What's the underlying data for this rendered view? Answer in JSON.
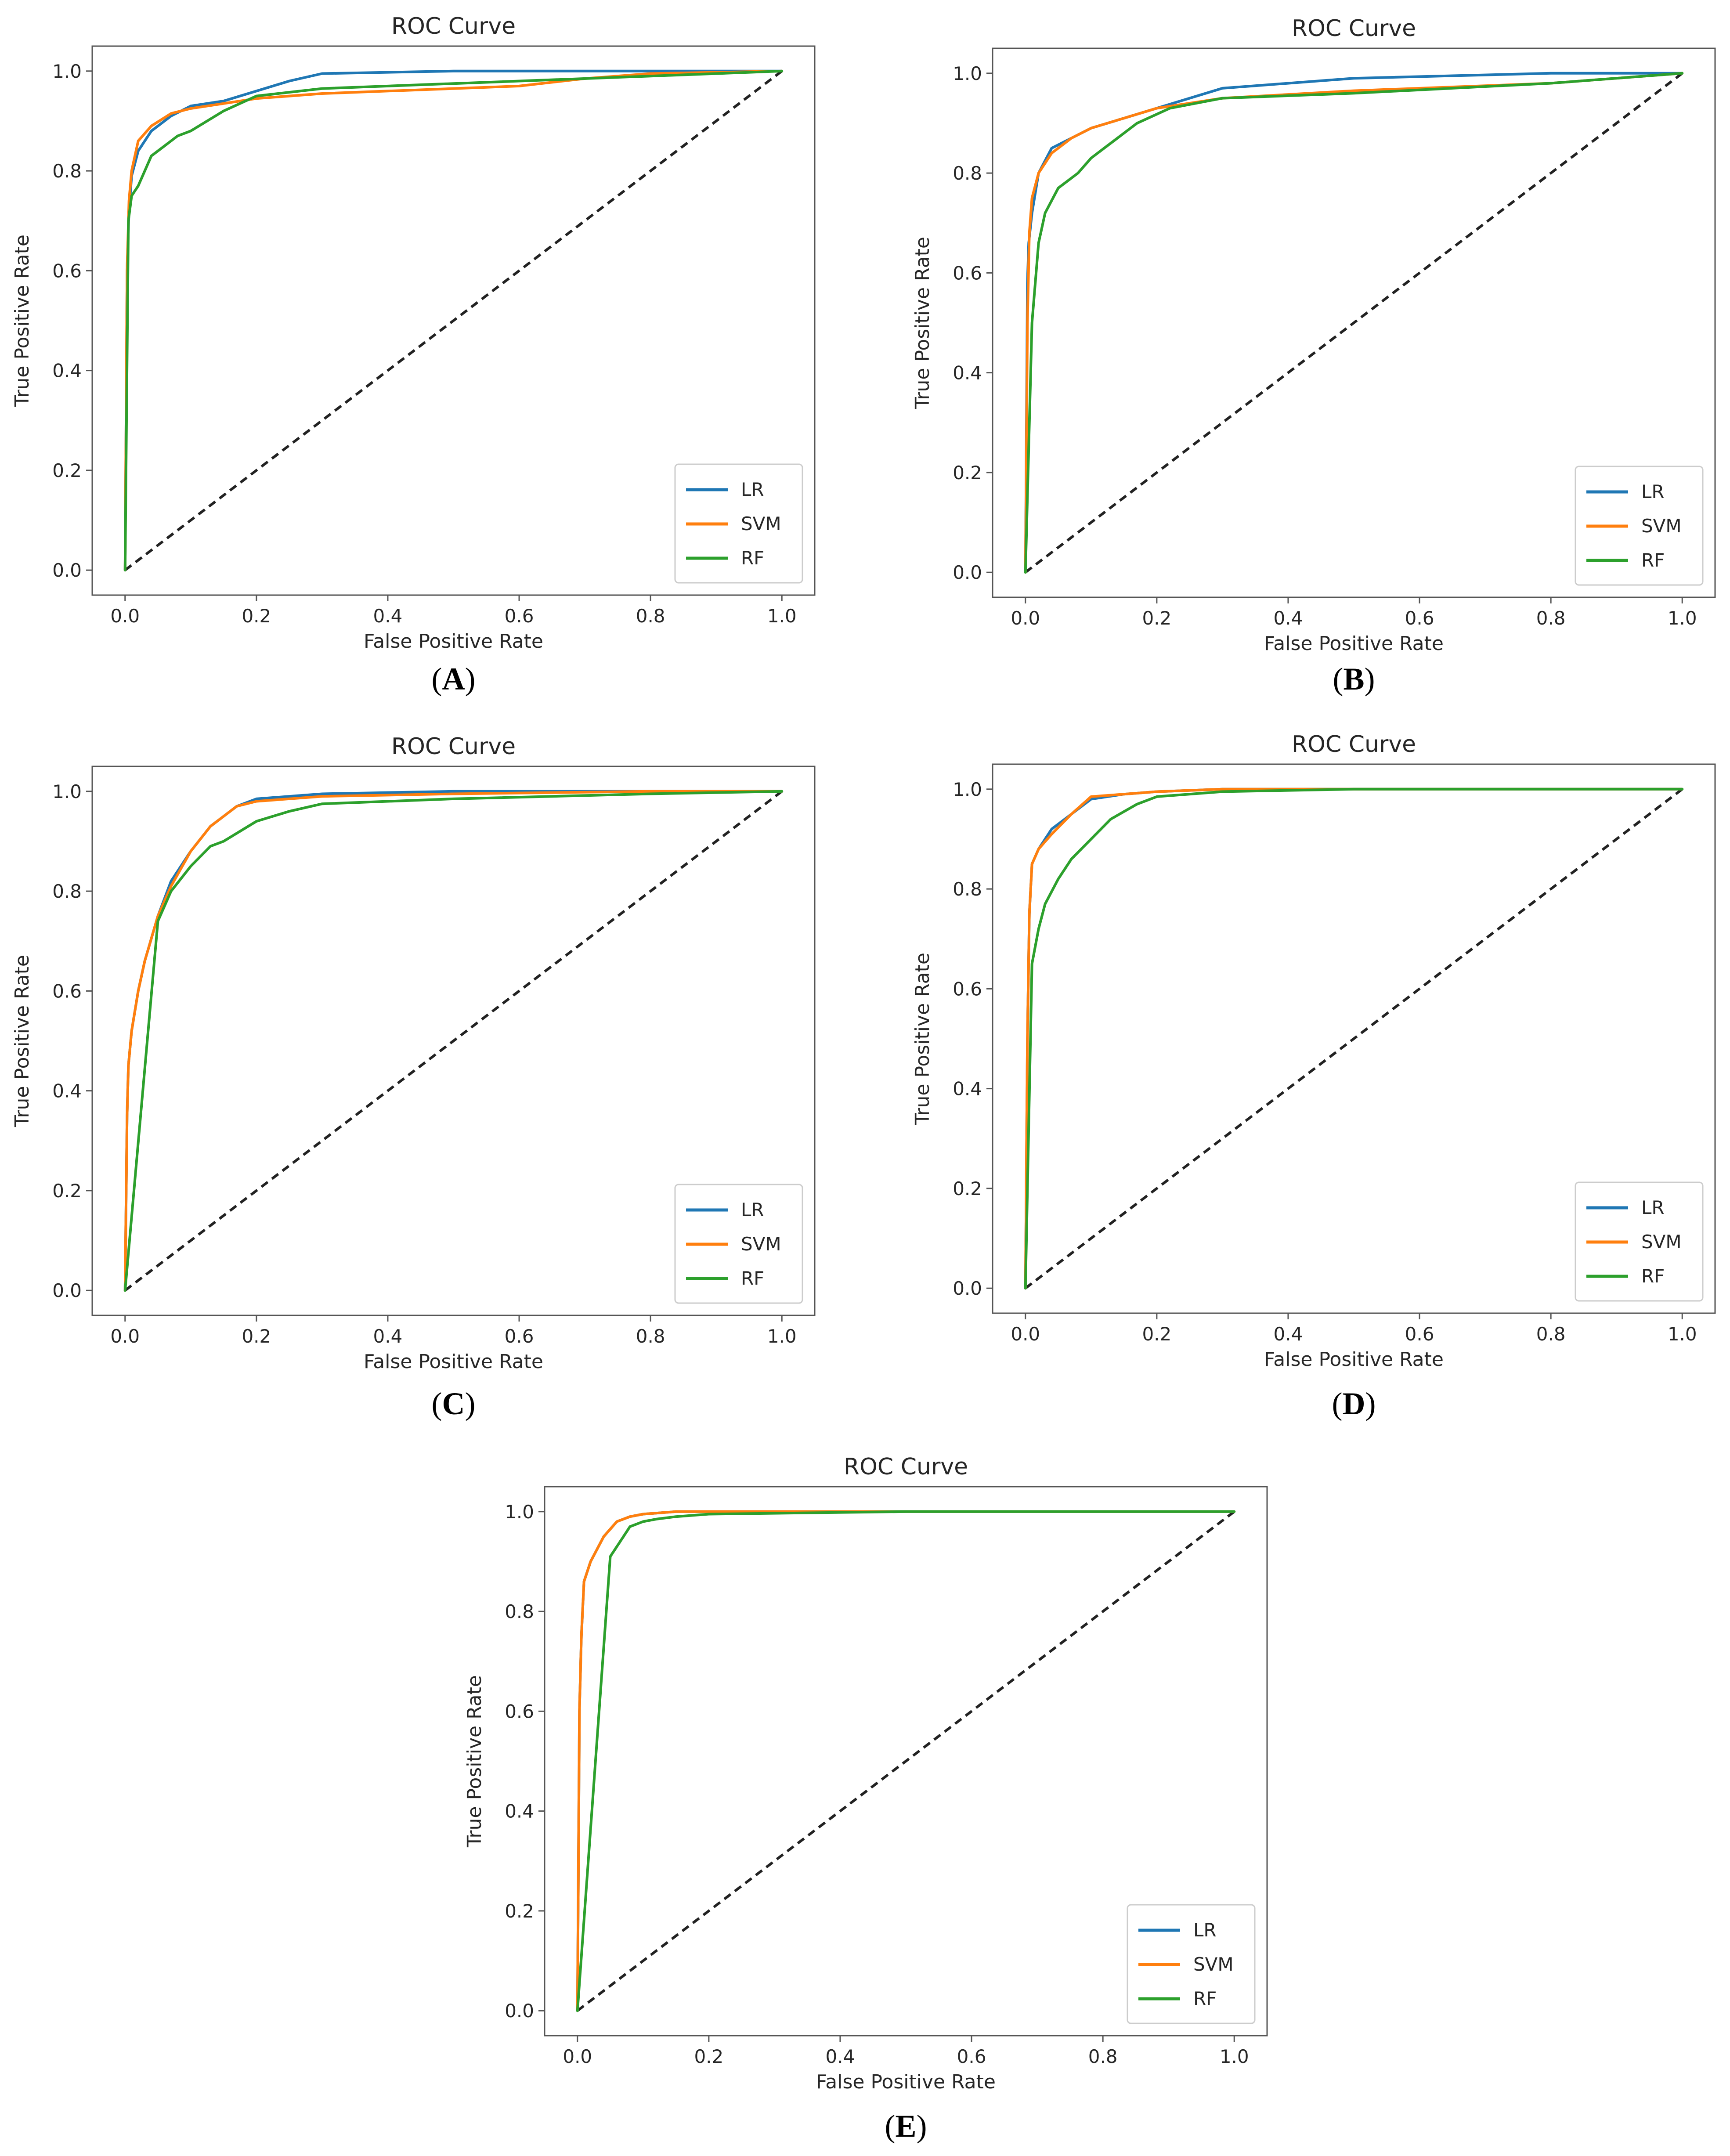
{
  "chart_data": [
    {
      "panel": "A",
      "type": "line",
      "title": "ROC Curve",
      "xlabel": "False Positive Rate",
      "ylabel": "True Positive Rate",
      "xlim": [
        0,
        1
      ],
      "ylim": [
        0,
        1
      ],
      "xticks": [
        "0.0",
        "0.2",
        "0.4",
        "0.6",
        "0.8",
        "1.0"
      ],
      "yticks": [
        "0.0",
        "0.2",
        "0.4",
        "0.6",
        "0.8",
        "1.0"
      ],
      "legend_position": "lower-right",
      "series": [
        {
          "name": "LR",
          "color": "#1f77b4",
          "x": [
            0,
            0.003,
            0.006,
            0.01,
            0.02,
            0.04,
            0.07,
            0.1,
            0.15,
            0.2,
            0.25,
            0.3,
            0.5,
            0.8,
            1.0
          ],
          "y": [
            0,
            0.6,
            0.72,
            0.79,
            0.84,
            0.88,
            0.91,
            0.93,
            0.94,
            0.96,
            0.98,
            0.995,
            1.0,
            1.0,
            1.0
          ]
        },
        {
          "name": "SVM",
          "color": "#ff7f0e",
          "x": [
            0,
            0.003,
            0.006,
            0.01,
            0.02,
            0.04,
            0.07,
            0.1,
            0.15,
            0.2,
            0.3,
            0.5,
            0.6,
            0.7,
            0.8,
            1.0
          ],
          "y": [
            0,
            0.6,
            0.74,
            0.8,
            0.86,
            0.89,
            0.915,
            0.925,
            0.935,
            0.945,
            0.955,
            0.965,
            0.97,
            0.985,
            0.995,
            1.0
          ]
        },
        {
          "name": "RF",
          "color": "#2ca02c",
          "x": [
            0,
            0.005,
            0.01,
            0.02,
            0.04,
            0.06,
            0.08,
            0.1,
            0.15,
            0.2,
            0.3,
            0.5,
            0.8,
            1.0
          ],
          "y": [
            0,
            0.7,
            0.75,
            0.77,
            0.83,
            0.85,
            0.87,
            0.88,
            0.92,
            0.95,
            0.965,
            0.975,
            0.99,
            1.0
          ]
        }
      ]
    },
    {
      "panel": "B",
      "type": "line",
      "title": "ROC Curve",
      "xlabel": "False Positive Rate",
      "ylabel": "True Positive Rate",
      "xlim": [
        0,
        1
      ],
      "ylim": [
        0,
        1
      ],
      "xticks": [
        "0.0",
        "0.2",
        "0.4",
        "0.6",
        "0.8",
        "1.0"
      ],
      "yticks": [
        "0.0",
        "0.2",
        "0.4",
        "0.6",
        "0.8",
        "1.0"
      ],
      "legend_position": "lower-right",
      "series": [
        {
          "name": "LR",
          "color": "#1f77b4",
          "x": [
            0,
            0.003,
            0.005,
            0.01,
            0.02,
            0.04,
            0.07,
            0.1,
            0.15,
            0.2,
            0.25,
            0.3,
            0.5,
            0.8,
            1.0
          ],
          "y": [
            0,
            0.58,
            0.66,
            0.72,
            0.8,
            0.85,
            0.87,
            0.89,
            0.91,
            0.93,
            0.95,
            0.97,
            0.99,
            1.0,
            1.0
          ]
        },
        {
          "name": "SVM",
          "color": "#ff7f0e",
          "x": [
            0,
            0.003,
            0.006,
            0.01,
            0.02,
            0.04,
            0.07,
            0.1,
            0.15,
            0.2,
            0.3,
            0.5,
            0.8,
            1.0
          ],
          "y": [
            0,
            0.5,
            0.68,
            0.75,
            0.8,
            0.84,
            0.87,
            0.89,
            0.91,
            0.93,
            0.95,
            0.965,
            0.98,
            1.0
          ]
        },
        {
          "name": "RF",
          "color": "#2ca02c",
          "x": [
            0,
            0.01,
            0.02,
            0.03,
            0.05,
            0.08,
            0.1,
            0.13,
            0.17,
            0.22,
            0.3,
            0.5,
            0.8,
            1.0
          ],
          "y": [
            0,
            0.5,
            0.66,
            0.72,
            0.77,
            0.8,
            0.83,
            0.86,
            0.9,
            0.93,
            0.95,
            0.96,
            0.98,
            1.0
          ]
        }
      ]
    },
    {
      "panel": "C",
      "type": "line",
      "title": "ROC Curve",
      "xlabel": "False Positive Rate",
      "ylabel": "True Positive Rate",
      "xlim": [
        0,
        1
      ],
      "ylim": [
        0,
        1
      ],
      "xticks": [
        "0.0",
        "0.2",
        "0.4",
        "0.6",
        "0.8",
        "1.0"
      ],
      "yticks": [
        "0.0",
        "0.2",
        "0.4",
        "0.6",
        "0.8",
        "1.0"
      ],
      "legend_position": "lower-right",
      "series": [
        {
          "name": "LR",
          "color": "#1f77b4",
          "x": [
            0,
            0.003,
            0.005,
            0.01,
            0.02,
            0.03,
            0.05,
            0.07,
            0.1,
            0.13,
            0.17,
            0.2,
            0.3,
            0.5,
            1.0
          ],
          "y": [
            0,
            0.35,
            0.45,
            0.52,
            0.6,
            0.66,
            0.75,
            0.82,
            0.88,
            0.93,
            0.97,
            0.985,
            0.995,
            1.0,
            1.0
          ]
        },
        {
          "name": "SVM",
          "color": "#ff7f0e",
          "x": [
            0,
            0.003,
            0.005,
            0.01,
            0.02,
            0.03,
            0.05,
            0.07,
            0.1,
            0.13,
            0.17,
            0.2,
            0.3,
            0.5,
            0.8,
            1.0
          ],
          "y": [
            0,
            0.35,
            0.45,
            0.52,
            0.6,
            0.66,
            0.75,
            0.81,
            0.88,
            0.93,
            0.97,
            0.98,
            0.99,
            0.995,
            1.0,
            1.0
          ]
        },
        {
          "name": "RF",
          "color": "#2ca02c",
          "x": [
            0,
            0.05,
            0.07,
            0.1,
            0.13,
            0.15,
            0.2,
            0.25,
            0.3,
            0.5,
            0.8,
            1.0
          ],
          "y": [
            0,
            0.74,
            0.8,
            0.85,
            0.89,
            0.9,
            0.94,
            0.96,
            0.975,
            0.985,
            0.995,
            1.0
          ]
        }
      ]
    },
    {
      "panel": "D",
      "type": "line",
      "title": "ROC Curve",
      "xlabel": "False Positive Rate",
      "ylabel": "True Positive Rate",
      "xlim": [
        0,
        1
      ],
      "ylim": [
        0,
        1
      ],
      "xticks": [
        "0.0",
        "0.2",
        "0.4",
        "0.6",
        "0.8",
        "1.0"
      ],
      "yticks": [
        "0.0",
        "0.2",
        "0.4",
        "0.6",
        "0.8",
        "1.0"
      ],
      "legend_position": "lower-right",
      "series": [
        {
          "name": "LR",
          "color": "#1f77b4",
          "x": [
            0,
            0.003,
            0.006,
            0.01,
            0.02,
            0.04,
            0.07,
            0.1,
            0.15,
            0.2,
            0.3,
            0.5,
            1.0
          ],
          "y": [
            0,
            0.5,
            0.75,
            0.85,
            0.88,
            0.92,
            0.95,
            0.98,
            0.99,
            0.995,
            1.0,
            1.0,
            1.0
          ]
        },
        {
          "name": "SVM",
          "color": "#ff7f0e",
          "x": [
            0,
            0.003,
            0.006,
            0.01,
            0.02,
            0.04,
            0.07,
            0.1,
            0.15,
            0.2,
            0.3,
            0.5,
            1.0
          ],
          "y": [
            0,
            0.5,
            0.75,
            0.85,
            0.88,
            0.91,
            0.95,
            0.985,
            0.99,
            0.995,
            1.0,
            1.0,
            1.0
          ]
        },
        {
          "name": "RF",
          "color": "#2ca02c",
          "x": [
            0,
            0.01,
            0.02,
            0.03,
            0.05,
            0.07,
            0.1,
            0.13,
            0.17,
            0.2,
            0.3,
            0.5,
            1.0
          ],
          "y": [
            0,
            0.65,
            0.72,
            0.77,
            0.82,
            0.86,
            0.9,
            0.94,
            0.97,
            0.985,
            0.995,
            1.0,
            1.0
          ]
        }
      ]
    },
    {
      "panel": "E",
      "type": "line",
      "title": "ROC Curve",
      "xlabel": "False Positive Rate",
      "ylabel": "True Positive Rate",
      "xlim": [
        0,
        1
      ],
      "ylim": [
        0,
        1
      ],
      "xticks": [
        "0.0",
        "0.2",
        "0.4",
        "0.6",
        "0.8",
        "1.0"
      ],
      "yticks": [
        "0.0",
        "0.2",
        "0.4",
        "0.6",
        "0.8",
        "1.0"
      ],
      "legend_position": "lower-right",
      "series": [
        {
          "name": "LR",
          "color": "#1f77b4",
          "x": [
            0,
            0.003,
            0.006,
            0.01,
            0.02,
            0.04,
            0.06,
            0.08,
            0.1,
            0.15,
            0.2,
            0.5,
            1.0
          ],
          "y": [
            0,
            0.6,
            0.75,
            0.86,
            0.9,
            0.95,
            0.98,
            0.99,
            0.995,
            1.0,
            1.0,
            1.0,
            1.0
          ]
        },
        {
          "name": "SVM",
          "color": "#ff7f0e",
          "x": [
            0,
            0.003,
            0.006,
            0.01,
            0.02,
            0.04,
            0.06,
            0.08,
            0.1,
            0.15,
            0.2,
            0.5,
            1.0
          ],
          "y": [
            0,
            0.6,
            0.75,
            0.86,
            0.9,
            0.95,
            0.98,
            0.99,
            0.995,
            1.0,
            1.0,
            1.0,
            1.0
          ]
        },
        {
          "name": "RF",
          "color": "#2ca02c",
          "x": [
            0,
            0.05,
            0.06,
            0.07,
            0.08,
            0.1,
            0.12,
            0.15,
            0.2,
            0.5,
            1.0
          ],
          "y": [
            0,
            0.91,
            0.93,
            0.95,
            0.97,
            0.98,
            0.985,
            0.99,
            0.995,
            1.0,
            1.0
          ]
        }
      ]
    }
  ],
  "panel_labels": [
    "A",
    "B",
    "C",
    "D",
    "E"
  ],
  "chance_line": {
    "x": [
      0,
      1
    ],
    "y": [
      0,
      1
    ],
    "color": "#222222",
    "style": "dashed"
  }
}
